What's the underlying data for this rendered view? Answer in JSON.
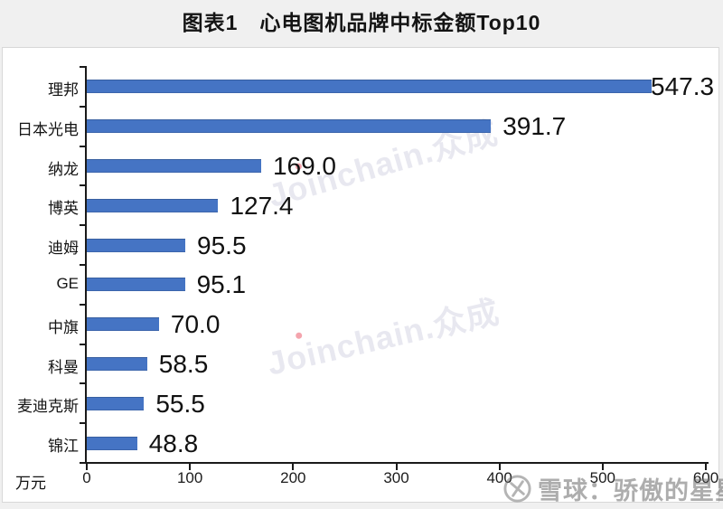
{
  "chart_data": {
    "type": "bar",
    "orientation": "horizontal",
    "title": "图表1　心电图机品牌中标金额Top10",
    "categories": [
      "理邦",
      "日本光电",
      "纳龙",
      "博英",
      "迪姆",
      "GE",
      "中旗",
      "科曼",
      "麦迪克斯",
      "锦江"
    ],
    "values": [
      547.3,
      391.7,
      169.0,
      127.4,
      95.5,
      95.1,
      70.0,
      58.5,
      55.5,
      48.8
    ],
    "value_labels": [
      "547.3",
      "391.7",
      "169.0",
      "127.4",
      "95.5",
      "95.1",
      "70.0",
      "58.5",
      "55.5",
      "48.8"
    ],
    "unit_label": "万元",
    "x_ticks": [
      "0",
      "100",
      "200",
      "300",
      "400",
      "500",
      "600"
    ],
    "xlim": [
      0,
      600
    ],
    "bar_color": "#4574C4",
    "axis_color": "#1a1a1a",
    "grid": false,
    "legend": false
  },
  "watermarks": {
    "joinchain": "Joinchain.众成",
    "xueqiu": "雪球：骄傲的星星城"
  }
}
